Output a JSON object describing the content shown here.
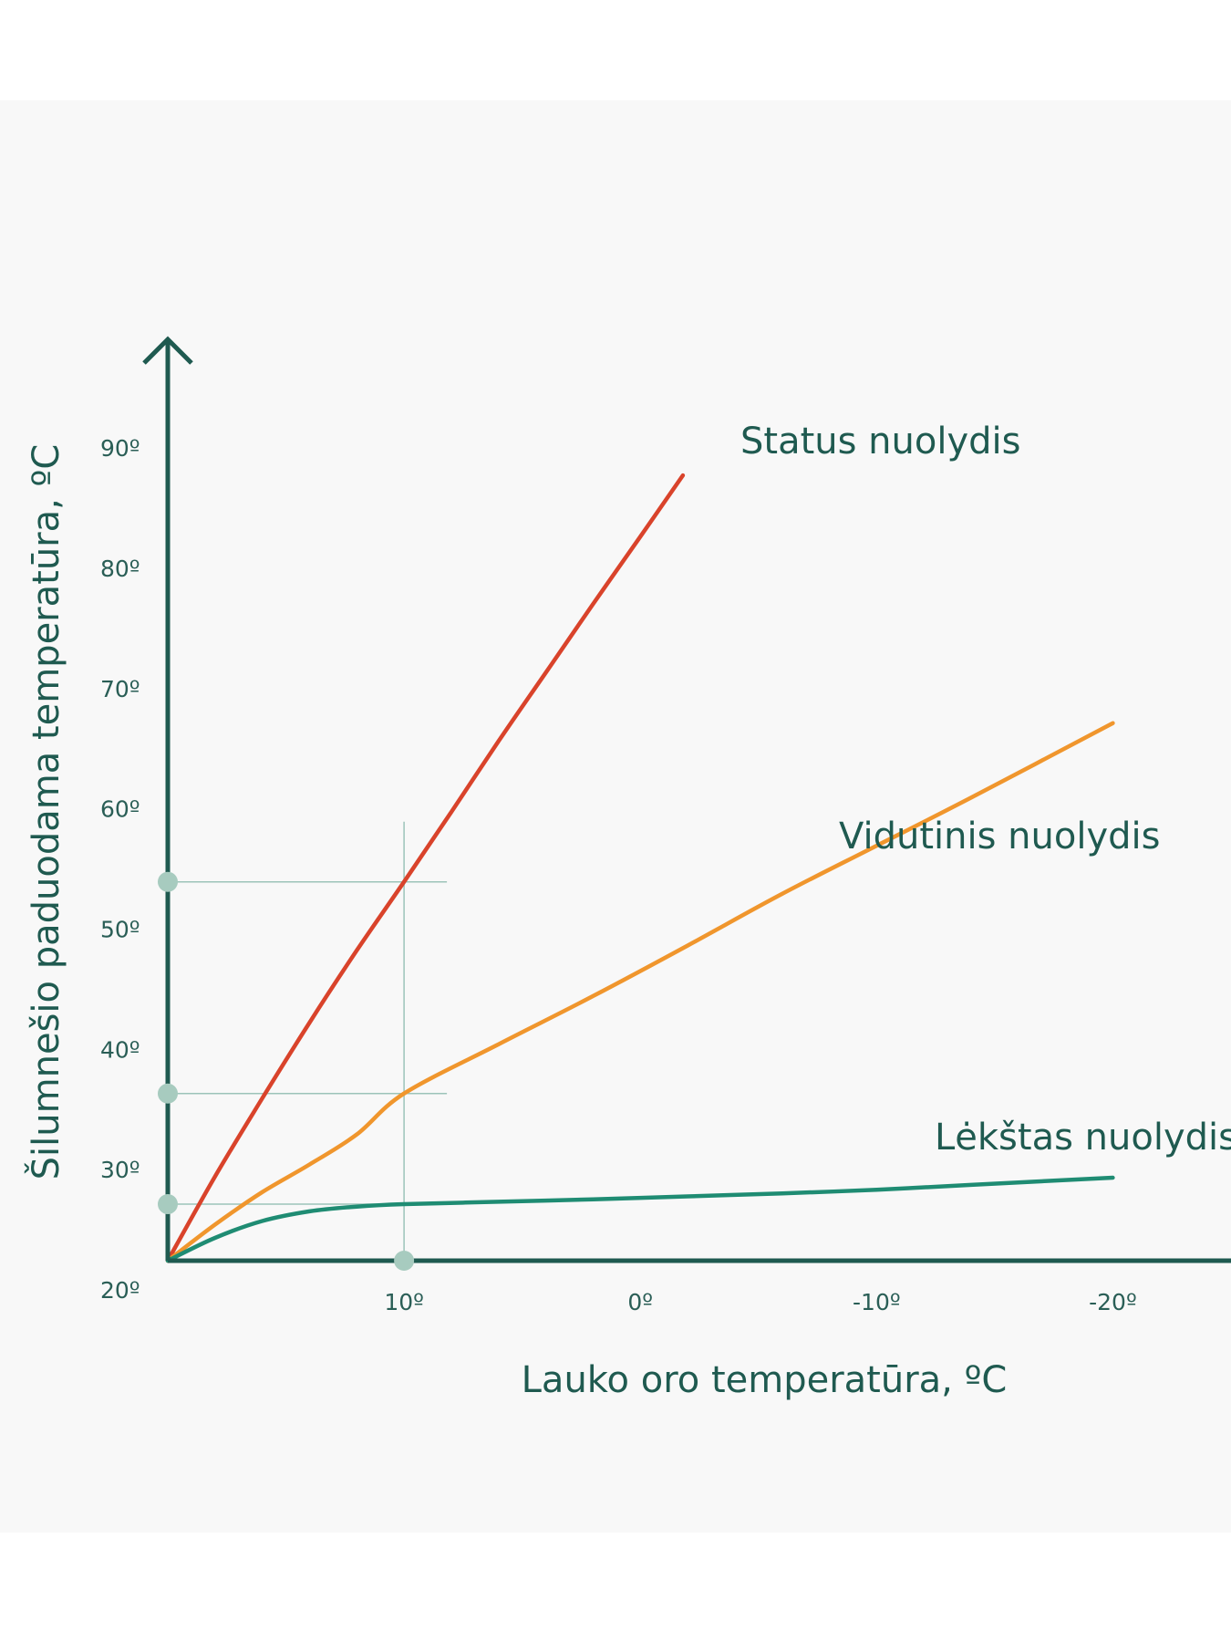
{
  "chart_data": {
    "type": "line",
    "xlabel": "Lauko oro temperatūra, ºC",
    "ylabel": "Šilumnešio paduodama temperatūra, ºC",
    "x_ticks": [
      "10º",
      "0º",
      "-10º",
      "-20º"
    ],
    "x_tick_values": [
      10,
      0,
      -10,
      -20
    ],
    "y_ticks": [
      "20º",
      "30º",
      "40º",
      "50º",
      "60º",
      "70º",
      "80º",
      "90º"
    ],
    "y_tick_values": [
      20,
      30,
      40,
      50,
      60,
      70,
      80,
      90
    ],
    "xlim": [
      20,
      -25
    ],
    "ylim": [
      20,
      96
    ],
    "grid": false,
    "series": [
      {
        "name": "Status nuolydis",
        "color": "#d9432b",
        "x": [
          20,
          18,
          16,
          14,
          12,
          10,
          8,
          6,
          4,
          2,
          0,
          -1.8
        ],
        "y": [
          20,
          27,
          33.5,
          39.8,
          45.8,
          51.5,
          57.3,
          63.2,
          68.9,
          74.6,
          80.2,
          85.3
        ]
      },
      {
        "name": "Vidutinis nuolydis",
        "color": "#f0962d",
        "x": [
          20,
          18,
          16,
          14,
          12,
          10,
          6,
          2,
          -2,
          -6,
          -10,
          -14,
          -20
        ],
        "y": [
          20,
          23,
          25.7,
          28,
          30.5,
          33.9,
          38,
          42,
          46.2,
          50.5,
          54.5,
          58.5,
          64.7
        ]
      },
      {
        "name": "Lėkštas nuolydis",
        "color": "#1f8c73",
        "x": [
          20,
          18,
          16,
          14,
          12,
          10,
          6,
          2,
          -2,
          -6,
          -10,
          -14,
          -20
        ],
        "y": [
          20,
          21.9,
          23.3,
          24.1,
          24.5,
          24.7,
          24.9,
          25.1,
          25.35,
          25.6,
          25.9,
          26.3,
          26.9
        ]
      }
    ],
    "reference": {
      "x": 10,
      "y_values": [
        51.5,
        33.9,
        24.7
      ]
    }
  }
}
